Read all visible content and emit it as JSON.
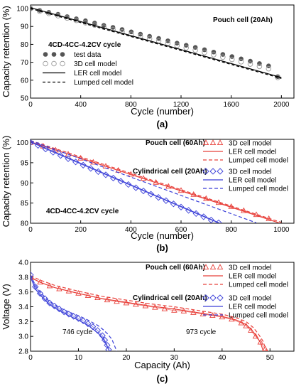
{
  "colors": {
    "red": "#e8403a",
    "blue": "#3a3fd8",
    "dark": "#555555",
    "hollow": "#9a9a9a"
  },
  "chart_data": [
    {
      "id": "a",
      "type": "scatter",
      "panel_label": "(a)",
      "xlabel": "Cycle (number)",
      "ylabel": "Capacity retention (%)",
      "xlim": [
        0,
        2100
      ],
      "ylim": [
        50,
        102
      ],
      "xticks": [
        0,
        400,
        800,
        1200,
        1600,
        2000
      ],
      "yticks": [
        50,
        60,
        70,
        80,
        90,
        100
      ],
      "annotations": [
        "Pouch cell  (20Ah)",
        "4CD-4CC-4.2CV cycle"
      ],
      "legend": {
        "position": "left",
        "entries": [
          {
            "label": "test data",
            "style": "filled-circle"
          },
          {
            "label": "3D cell model",
            "style": "hollow-circle"
          },
          {
            "label": "LER cell model",
            "style": "solid"
          },
          {
            "label": "Lumped cell model",
            "style": "dashed"
          }
        ]
      },
      "series": [
        {
          "name": "test data",
          "x": [
            0,
            73,
            146,
            219,
            292,
            365,
            438,
            511,
            584,
            657,
            730,
            803,
            876,
            949,
            1022,
            1095,
            1168,
            1241,
            1314,
            1387,
            1460,
            1533,
            1606,
            1679,
            1752,
            1825,
            1898,
            1971
          ],
          "y": [
            100,
            99,
            97.9,
            96.8,
            95.5,
            94.3,
            93.2,
            91.9,
            90.6,
            89.5,
            88.3,
            87,
            85.7,
            84.5,
            83.3,
            82,
            80.7,
            79.5,
            78.3,
            77,
            75.7,
            74.4,
            73.2,
            71.9,
            70.6,
            69.3,
            68,
            62
          ]
        },
        {
          "name": "3D cell model",
          "x": [
            0,
            73,
            146,
            219,
            292,
            365,
            438,
            511,
            584,
            657,
            730,
            803,
            876,
            949,
            1022,
            1095,
            1168,
            1241,
            1314,
            1387,
            1460,
            1533,
            1606,
            1679,
            1752,
            1825,
            1898,
            1971
          ],
          "y": [
            100,
            98.5,
            97.3,
            96,
            94.7,
            93.4,
            92.1,
            90.8,
            89.6,
            88.3,
            87,
            85.7,
            84.5,
            83.2,
            81.9,
            80.6,
            79.4,
            78.1,
            76.8,
            75.5,
            74.2,
            72.9,
            71.6,
            70.3,
            69,
            67.7,
            66.4,
            61.5
          ]
        },
        {
          "name": "LER cell model",
          "x": [
            0,
            2000
          ],
          "y": [
            100.5,
            61.5
          ]
        },
        {
          "name": "Lumped cell model",
          "x": [
            0,
            2000
          ],
          "y": [
            100,
            61
          ]
        }
      ]
    },
    {
      "id": "b",
      "type": "line",
      "panel_label": "(b)",
      "xlabel": "Cycle (number)",
      "ylabel": "Capacity retention (%)",
      "xlim": [
        0,
        1050
      ],
      "ylim": [
        80,
        100.8
      ],
      "xticks": [
        0,
        200,
        400,
        600,
        800,
        1000
      ],
      "yticks": [
        80,
        85,
        90,
        95,
        100
      ],
      "annotations": [
        "4CD-4CC-4.2CV cycle"
      ],
      "legend_groups": [
        {
          "title": "Pouch cell  (60Ah)",
          "color": "red",
          "entries": [
            {
              "label": "3D cell model",
              "style": "triangle"
            },
            {
              "label": "LER cell model",
              "style": "solid"
            },
            {
              "label": "Lumped cell model",
              "style": "dashed"
            }
          ]
        },
        {
          "title": "Cylindrical cell  (20Ah)",
          "color": "blue",
          "entries": [
            {
              "label": "3D cell model",
              "style": "diamond"
            },
            {
              "label": "LER cell model",
              "style": "solid"
            },
            {
              "label": "Lumped cell model",
              "style": "dashed"
            }
          ]
        }
      ],
      "series": [
        {
          "name": "Pouch cell (60Ah) 3D cell model",
          "color": "red",
          "marker": "triangle",
          "x": [
            0,
            50,
            100,
            150,
            200,
            250,
            300,
            350,
            400,
            450,
            500,
            550,
            600,
            650,
            700,
            750,
            800,
            850,
            900,
            950
          ],
          "y": [
            100,
            99.1,
            98.1,
            97.1,
            96.1,
            95.1,
            94.1,
            93.1,
            92.1,
            91.1,
            90.1,
            89.1,
            88.1,
            87.1,
            86.1,
            85.1,
            84.1,
            83.1,
            82.1,
            81.1
          ]
        },
        {
          "name": "Pouch cell (60Ah) LER cell model",
          "color": "red",
          "dash": false,
          "x": [
            0,
            990
          ],
          "y": [
            100.2,
            80.1
          ]
        },
        {
          "name": "Pouch cell (60Ah) Lumped cell model",
          "color": "red",
          "dash": true,
          "x": [
            0,
            1000
          ],
          "y": [
            100.5,
            80.2
          ]
        },
        {
          "name": "Cylindrical cell (20Ah) 3D cell model",
          "color": "blue",
          "marker": "diamond",
          "x": [
            0,
            30,
            60,
            90,
            120,
            150,
            180,
            210,
            240,
            270,
            300,
            330,
            360,
            390,
            420,
            450,
            480,
            510,
            540,
            570,
            600,
            630,
            660,
            690,
            720,
            750
          ],
          "y": [
            100,
            99.3,
            98.4,
            97.6,
            96.8,
            96,
            95.2,
            94.4,
            93.6,
            92.8,
            92,
            91.2,
            90.4,
            89.6,
            88.8,
            88,
            87.2,
            86.4,
            85.6,
            84.8,
            84,
            83.2,
            82.4,
            81.6,
            80.8,
            80.1
          ]
        },
        {
          "name": "Cylindrical cell (20Ah) LER cell model",
          "color": "blue",
          "dash": false,
          "x": [
            0,
            755
          ],
          "y": [
            100.2,
            80
          ]
        },
        {
          "name": "Cylindrical cell (20Ah) Lumped cell model",
          "color": "blue",
          "dash": true,
          "x": [
            0,
            900
          ],
          "y": [
            100.5,
            80.1
          ]
        }
      ]
    },
    {
      "id": "c",
      "type": "line",
      "panel_label": "(c)",
      "xlabel": "Capacity (Ah)",
      "ylabel": "Voltage (V)",
      "xlim": [
        0,
        55
      ],
      "ylim": [
        2.8,
        4.0
      ],
      "xticks": [
        0,
        10,
        20,
        30,
        40,
        50
      ],
      "yticks": [
        2.8,
        3.0,
        3.2,
        3.4,
        3.6,
        3.8,
        4.0
      ],
      "annotations": [
        "746 cycle",
        "973 cycle"
      ],
      "legend_groups": [
        {
          "title": "Pouch cell  (60Ah)",
          "color": "red",
          "entries": [
            {
              "label": "3D cell model",
              "style": "triangle"
            },
            {
              "label": "LER cell model",
              "style": "solid"
            },
            {
              "label": "Lumped cell model",
              "style": "dashed"
            }
          ]
        },
        {
          "title": "Cylindrical cell  (20Ah)",
          "color": "blue",
          "entries": [
            {
              "label": "3D cell model",
              "style": "diamond"
            },
            {
              "label": "LER cell model",
              "style": "solid"
            },
            {
              "label": "Lumped cell model",
              "style": "dashed"
            }
          ]
        }
      ],
      "series": [
        {
          "name": "Pouch cell (60Ah) 3D cell model",
          "color": "red",
          "marker": "triangle",
          "x": [
            0,
            2,
            4,
            6,
            8,
            10,
            12,
            14,
            16,
            18,
            20,
            22,
            24,
            26,
            28,
            30,
            32,
            34,
            36,
            38,
            40,
            42,
            44,
            45,
            46,
            47,
            48,
            49
          ],
          "y": [
            3.79,
            3.73,
            3.68,
            3.64,
            3.61,
            3.58,
            3.55,
            3.52,
            3.49,
            3.47,
            3.45,
            3.43,
            3.41,
            3.39,
            3.37,
            3.35,
            3.34,
            3.32,
            3.3,
            3.28,
            3.26,
            3.23,
            3.18,
            3.14,
            3.08,
            3.0,
            2.92,
            2.83
          ]
        },
        {
          "name": "Pouch cell (60Ah) LER cell model",
          "color": "red",
          "dash": false,
          "x": [
            0,
            2,
            5,
            10,
            15,
            20,
            25,
            30,
            35,
            40,
            43,
            45,
            46,
            47,
            48,
            48.6
          ],
          "y": [
            3.8,
            3.73,
            3.66,
            3.58,
            3.51,
            3.46,
            3.41,
            3.37,
            3.32,
            3.27,
            3.22,
            3.16,
            3.1,
            3.02,
            2.92,
            2.8
          ]
        },
        {
          "name": "Pouch cell (60Ah) Lumped cell model",
          "color": "red",
          "dash": true,
          "x": [
            0,
            2,
            5,
            10,
            15,
            20,
            25,
            30,
            35,
            40,
            43,
            45,
            46.5,
            47.5,
            48.5,
            49.3
          ],
          "y": [
            3.82,
            3.76,
            3.69,
            3.61,
            3.54,
            3.49,
            3.44,
            3.4,
            3.35,
            3.3,
            3.25,
            3.2,
            3.12,
            3.04,
            2.94,
            2.8
          ]
        },
        {
          "name": "Cylindrical cell (20Ah) 3D cell model",
          "color": "blue",
          "marker": "diamond",
          "x": [
            0,
            1,
            2,
            3,
            4,
            5,
            6,
            7,
            8,
            9,
            10,
            11,
            12,
            13,
            14,
            15,
            15.5,
            16,
            16.3
          ],
          "y": [
            3.83,
            3.67,
            3.58,
            3.51,
            3.45,
            3.41,
            3.37,
            3.33,
            3.3,
            3.27,
            3.24,
            3.21,
            3.17,
            3.13,
            3.08,
            3.01,
            2.95,
            2.88,
            2.82
          ]
        },
        {
          "name": "Cylindrical cell (20Ah) LER cell model",
          "color": "blue",
          "dash": false,
          "x": [
            0,
            1,
            2,
            3,
            4,
            6,
            8,
            10,
            12,
            13,
            14,
            15,
            15.6,
            16.1,
            16.5
          ],
          "y": [
            3.8,
            3.64,
            3.56,
            3.49,
            3.43,
            3.35,
            3.28,
            3.22,
            3.15,
            3.1,
            3.05,
            2.98,
            2.92,
            2.85,
            2.8
          ]
        },
        {
          "name": "Cylindrical cell (20Ah) Lumped cell model",
          "color": "blue",
          "dash": true,
          "x": [
            0,
            1,
            2,
            3,
            4,
            6,
            8,
            10,
            12,
            14,
            15,
            16,
            17,
            17.5,
            18
          ],
          "y": [
            3.83,
            3.69,
            3.6,
            3.53,
            3.47,
            3.39,
            3.33,
            3.28,
            3.22,
            3.15,
            3.1,
            3.04,
            2.96,
            2.88,
            2.8
          ]
        }
      ]
    }
  ]
}
